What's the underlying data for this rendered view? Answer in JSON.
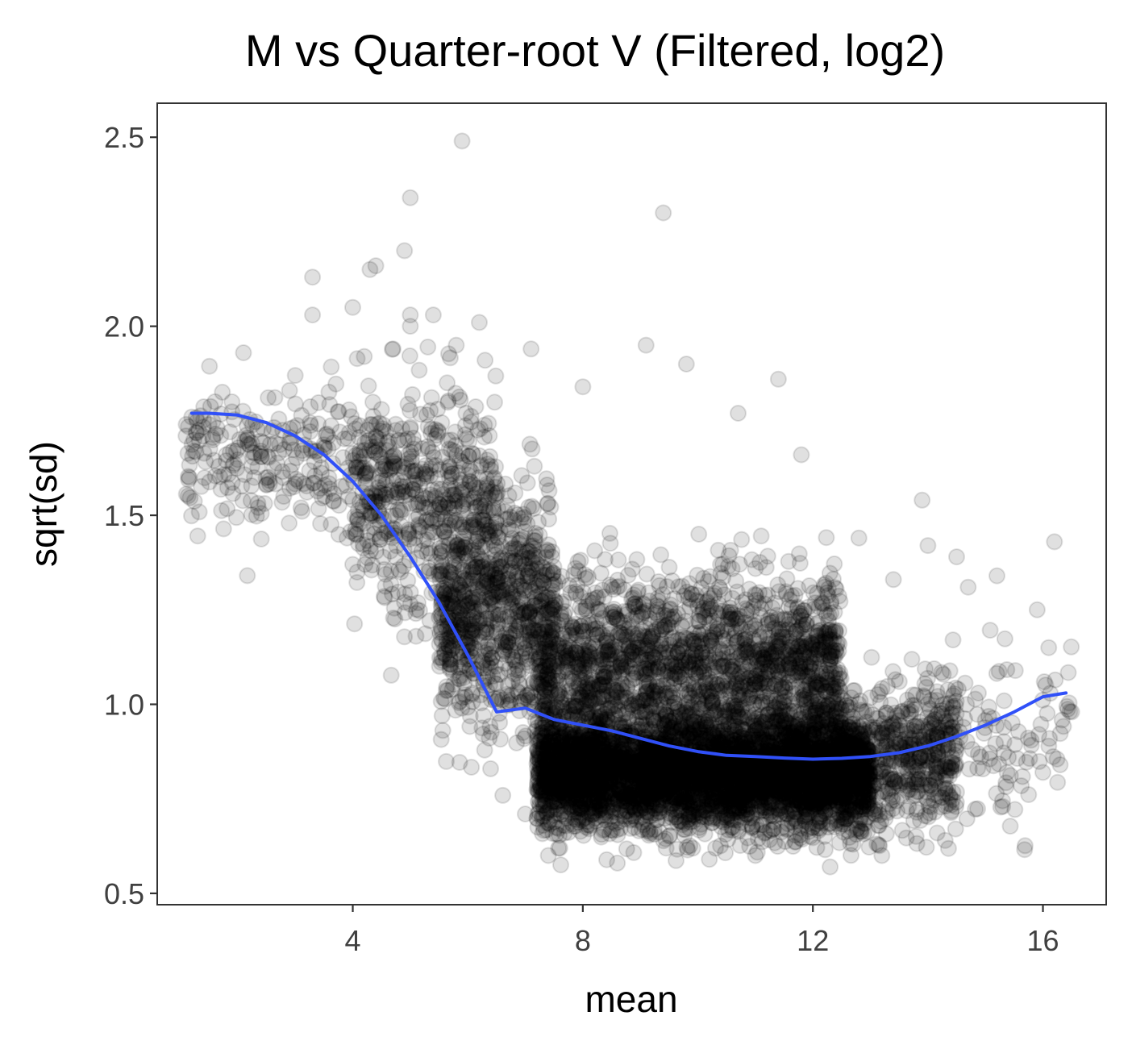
{
  "chart_data": {
    "type": "scatter",
    "title": "M vs Quarter-root V (Filtered, log2)",
    "xlabel": "mean",
    "ylabel": "sqrt(sd)",
    "xlim": [
      0.6,
      17.1
    ],
    "ylim": [
      0.47,
      2.59
    ],
    "x_ticks": [
      4,
      8,
      12,
      16
    ],
    "y_ticks": [
      0.5,
      1.0,
      1.5,
      2.0,
      2.5
    ],
    "x_tick_labels": [
      "4",
      "8",
      "12",
      "16"
    ],
    "y_tick_labels": [
      "0.5",
      "1.0",
      "1.5",
      "2.0",
      "2.5"
    ],
    "grid": false,
    "colors": {
      "points": "#000000",
      "trend": "#3050f8"
    },
    "point_alpha": 0.12,
    "n_points_approx": 9000,
    "highlighted_points": [
      {
        "x": 1.1,
        "y": 1.71
      },
      {
        "x": 1.2,
        "y": 1.76
      },
      {
        "x": 1.5,
        "y": 1.74
      },
      {
        "x": 1.8,
        "y": 1.66
      },
      {
        "x": 1.9,
        "y": 1.8
      },
      {
        "x": 2.1,
        "y": 1.93
      },
      {
        "x": 2.4,
        "y": 1.67
      },
      {
        "x": 2.5,
        "y": 1.58
      },
      {
        "x": 2.8,
        "y": 1.55
      },
      {
        "x": 2.9,
        "y": 1.83
      },
      {
        "x": 3.0,
        "y": 1.87
      },
      {
        "x": 3.1,
        "y": 1.52
      },
      {
        "x": 3.3,
        "y": 2.13
      },
      {
        "x": 3.3,
        "y": 2.03
      },
      {
        "x": 3.5,
        "y": 1.68
      },
      {
        "x": 3.6,
        "y": 1.57
      },
      {
        "x": 3.9,
        "y": 1.44
      },
      {
        "x": 4.0,
        "y": 1.37
      },
      {
        "x": 4.0,
        "y": 2.05
      },
      {
        "x": 4.2,
        "y": 1.92
      },
      {
        "x": 4.3,
        "y": 2.15
      },
      {
        "x": 4.4,
        "y": 2.16
      },
      {
        "x": 4.5,
        "y": 1.78
      },
      {
        "x": 4.7,
        "y": 1.94
      },
      {
        "x": 4.9,
        "y": 2.2
      },
      {
        "x": 4.9,
        "y": 1.27
      },
      {
        "x": 5.0,
        "y": 2.34
      },
      {
        "x": 5.0,
        "y": 2.03
      },
      {
        "x": 5.0,
        "y": 2.0
      },
      {
        "x": 5.1,
        "y": 1.18
      },
      {
        "x": 5.4,
        "y": 2.03
      },
      {
        "x": 5.8,
        "y": 1.95
      },
      {
        "x": 5.9,
        "y": 2.49
      },
      {
        "x": 6.2,
        "y": 2.01
      },
      {
        "x": 6.3,
        "y": 1.91
      },
      {
        "x": 7.1,
        "y": 1.94
      },
      {
        "x": 7.0,
        "y": 0.71
      },
      {
        "x": 7.4,
        "y": 0.6
      },
      {
        "x": 8.0,
        "y": 1.84
      },
      {
        "x": 8.6,
        "y": 0.58
      },
      {
        "x": 9.1,
        "y": 1.95
      },
      {
        "x": 9.4,
        "y": 2.3
      },
      {
        "x": 9.8,
        "y": 1.9
      },
      {
        "x": 10.7,
        "y": 1.77
      },
      {
        "x": 11.4,
        "y": 1.86
      },
      {
        "x": 11.8,
        "y": 1.66
      },
      {
        "x": 12.3,
        "y": 0.57
      },
      {
        "x": 12.8,
        "y": 1.44
      },
      {
        "x": 13.4,
        "y": 1.33
      },
      {
        "x": 13.9,
        "y": 1.54
      },
      {
        "x": 14.0,
        "y": 1.42
      },
      {
        "x": 14.5,
        "y": 1.39
      },
      {
        "x": 14.7,
        "y": 1.31
      },
      {
        "x": 15.2,
        "y": 1.34
      },
      {
        "x": 15.3,
        "y": 0.73
      },
      {
        "x": 15.4,
        "y": 0.86
      },
      {
        "x": 15.9,
        "y": 1.25
      },
      {
        "x": 16.1,
        "y": 1.15
      },
      {
        "x": 16.0,
        "y": 0.82
      },
      {
        "x": 16.2,
        "y": 1.43
      },
      {
        "x": 16.5,
        "y": 0.98
      },
      {
        "x": 16.3,
        "y": 0.84
      },
      {
        "x": 13.2,
        "y": 0.6
      },
      {
        "x": 7.6,
        "y": 0.62
      },
      {
        "x": 10.2,
        "y": 0.59
      },
      {
        "x": 11.0,
        "y": 0.6
      },
      {
        "x": 12.7,
        "y": 0.63
      },
      {
        "x": 14.3,
        "y": 0.64
      }
    ],
    "density_regions": [
      {
        "x_range": [
          1.1,
          4.5
        ],
        "y_center": 1.65,
        "y_spread": 0.16,
        "count": 260
      },
      {
        "x_range": [
          4.0,
          6.5
        ],
        "y_center": 1.55,
        "y_spread": 0.24,
        "count": 500
      },
      {
        "x_range": [
          5.5,
          7.5
        ],
        "y_center": 1.25,
        "y_spread": 0.25,
        "count": 850
      },
      {
        "x_range": [
          7.2,
          13.0
        ],
        "y_center": 0.82,
        "y_spread": 0.12,
        "count": 4500
      },
      {
        "x_range": [
          7.2,
          12.5
        ],
        "y_center": 1.1,
        "y_spread": 0.2,
        "count": 1900
      },
      {
        "x_range": [
          12.0,
          14.5
        ],
        "y_center": 0.85,
        "y_spread": 0.15,
        "count": 700
      },
      {
        "x_range": [
          14.0,
          16.5
        ],
        "y_center": 0.9,
        "y_spread": 0.2,
        "count": 120
      }
    ],
    "series": [
      {
        "type": "line",
        "x": [
          1.2,
          1.5,
          2.0,
          2.5,
          3.0,
          3.5,
          4.0,
          4.5,
          5.0,
          5.5,
          6.0,
          6.5,
          7.0,
          7.5,
          8.0,
          8.5,
          9.0,
          9.5,
          10.0,
          10.5,
          11.0,
          11.5,
          12.0,
          12.5,
          13.0,
          13.5,
          14.0,
          14.5,
          15.0,
          15.5,
          16.0,
          16.4
        ],
        "y": [
          1.77,
          1.77,
          1.765,
          1.745,
          1.71,
          1.66,
          1.59,
          1.5,
          1.39,
          1.27,
          1.13,
          0.98,
          0.99,
          0.96,
          0.945,
          0.93,
          0.91,
          0.89,
          0.875,
          0.865,
          0.862,
          0.858,
          0.855,
          0.857,
          0.862,
          0.872,
          0.89,
          0.915,
          0.945,
          0.98,
          1.02,
          1.03
        ]
      }
    ]
  }
}
